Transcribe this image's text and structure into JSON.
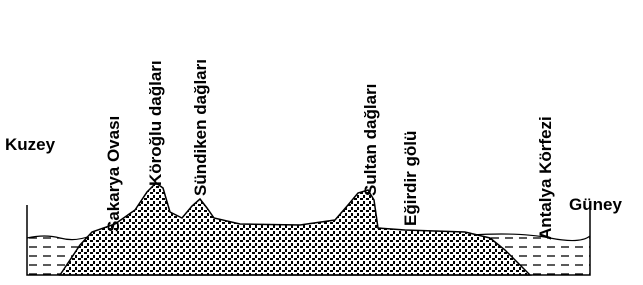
{
  "directions": {
    "north": "Kuzey",
    "south": "Güney"
  },
  "labels": [
    "Sakarya Ovası",
    "Köroğlu dağları",
    "Sündiken dağları",
    "Sultan dağları",
    "Eğirdir gölü",
    "Antalya Körfezi"
  ]
}
